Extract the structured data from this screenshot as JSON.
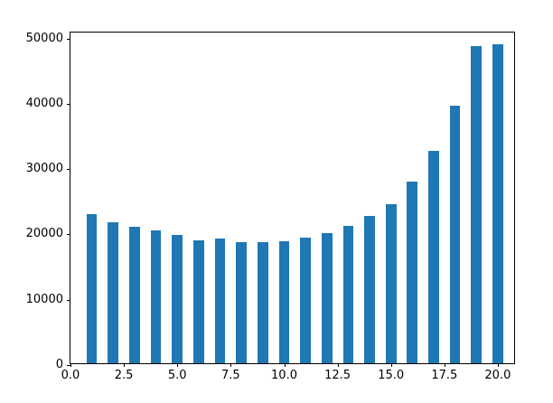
{
  "chart_data": {
    "type": "bar",
    "title": "",
    "xlabel": "",
    "ylabel": "",
    "grid": false,
    "legend": null,
    "bar_color": "#1f77b4",
    "bar_width_units": 0.5,
    "background_color": "#ffffff",
    "spine_color": "#000000",
    "text_color": "#000000",
    "xlim": [
      0,
      20.85
    ],
    "ylim": [
      0,
      50900
    ],
    "x": [
      1,
      2,
      3,
      4,
      5,
      6,
      7,
      8,
      9,
      10,
      11,
      12,
      13,
      14,
      15,
      16,
      17,
      18,
      19,
      20
    ],
    "values": [
      22800,
      21600,
      20900,
      20300,
      19700,
      18850,
      19050,
      18600,
      18500,
      18650,
      19300,
      19950,
      21000,
      22500,
      24300,
      27800,
      32500,
      39400,
      48500,
      48800
    ],
    "xticks": [
      0,
      2.5,
      5,
      7.5,
      10,
      12.5,
      15,
      17.5,
      20
    ],
    "xtick_labels": [
      "0.0",
      "2.5",
      "5.0",
      "7.5",
      "10.0",
      "12.5",
      "15.0",
      "17.5",
      "20.0"
    ],
    "yticks": [
      0,
      10000,
      20000,
      30000,
      40000,
      50000
    ],
    "ytick_labels": [
      "0",
      "10000",
      "20000",
      "30000",
      "40000",
      "50000"
    ]
  }
}
